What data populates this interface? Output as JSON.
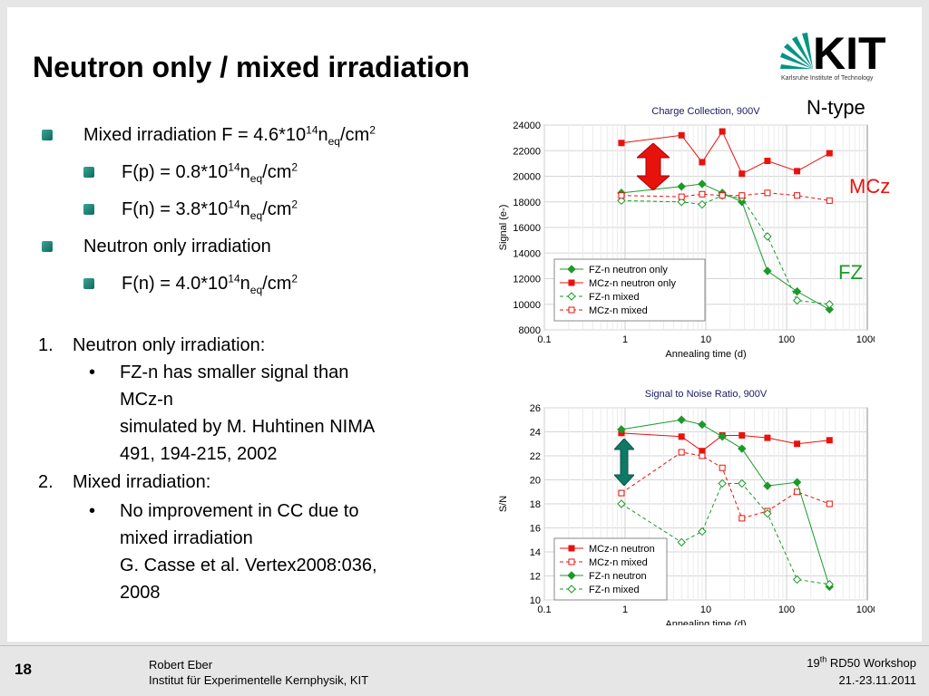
{
  "title": "Neutron only / mixed irradiation",
  "logo": {
    "text": "KIT",
    "subtitle": "Karlsruhe Institute of Technology"
  },
  "bullets": {
    "b1_main": "Mixed irradiation F = 4.6*10",
    "b1_sup": "14",
    "b1_n": "n",
    "b1_sub": "eq",
    "b1_unit": "/cm",
    "b1_unit_sup": "2",
    "b2_main": "F(p) = 0.8*10",
    "b2_sup": "14",
    "b2_n": "n",
    "b2_sub": "eq",
    "b2_unit": "/cm",
    "b2_unit_sup": "2",
    "b3_main": "F(n) = 3.8*10",
    "b3_sup": "14",
    "b3_n": "n",
    "b3_sub": "eq",
    "b3_unit": "/cm",
    "b3_unit_sup": "2",
    "b4_main": "Neutron only irradiation",
    "b5_main": "F(n) = 4.0*10",
    "b5_sup": "14",
    "b5_n": "n",
    "b5_sub": "eq",
    "b5_unit": "/cm",
    "b5_unit_sup": "2"
  },
  "numbered": {
    "n1": "1.",
    "n1_text": "Neutron only irradiation:",
    "n1_bullet": "•",
    "n1_sub1": "FZ-n has smaller signal than",
    "n1_sub2": "MCz-n",
    "n1_sub3": "simulated by M. Huhtinen NIMA",
    "n1_sub4": "491, 194-215, 2002",
    "n2": "2.",
    "n2_text": "Mixed irradiation:",
    "n2_bullet": "•",
    "n2_sub1": "No improvement in CC due to",
    "n2_sub2": "mixed irradiation",
    "n2_sub3": "G. Casse et al. Vertex2008:036,",
    "n2_sub4": "2008"
  },
  "labels": {
    "ntype": "N-type",
    "mcz": "MCz",
    "fz": "FZ"
  },
  "colors": {
    "red": "#e8120c",
    "green": "#1b9a2a",
    "teal": "#0e7a66"
  },
  "footer": {
    "page": "18",
    "author": "Robert Eber",
    "institute": "Institut für Experimentelle Kernphysik, KIT",
    "workshop_pre": "19",
    "workshop_sup": "th",
    "workshop_post": " RD50 Workshop",
    "date": "21.-23.11.2011"
  },
  "chart_data": [
    {
      "type": "line",
      "title": "Charge Collection, 900V",
      "xlabel": "Annealing time (d)",
      "ylabel": "Signal (e-)",
      "xscale": "log",
      "xlim": [
        0.1,
        1000
      ],
      "ylim": [
        8000,
        24000
      ],
      "yticks": [
        8000,
        10000,
        12000,
        14000,
        16000,
        18000,
        20000,
        22000,
        24000
      ],
      "xticks": [
        0.1,
        1,
        10,
        100,
        1000
      ],
      "xticklabels": [
        "0.1",
        "1",
        "10",
        "100",
        "1000"
      ],
      "grid": true,
      "legend": "bottom-left",
      "series": [
        {
          "name": "FZ-n neutron only",
          "color": "#1b9a2a",
          "marker": "filled-diamond",
          "dashed": false,
          "x": [
            0.9,
            5,
            9,
            16,
            28,
            58,
            135,
            340
          ],
          "y": [
            18700,
            19200,
            19400,
            18700,
            18000,
            12600,
            11000,
            9600
          ]
        },
        {
          "name": "MCz-n neutron only",
          "color": "#e8120c",
          "marker": "filled-square",
          "dashed": false,
          "x": [
            0.9,
            5,
            9,
            16,
            28,
            58,
            135,
            340
          ],
          "y": [
            22600,
            23200,
            21100,
            23500,
            20200,
            21200,
            20400,
            21800
          ]
        },
        {
          "name": "FZ-n mixed",
          "color": "#1b9a2a",
          "marker": "open-diamond",
          "dashed": true,
          "x": [
            0.9,
            5,
            9,
            16,
            28,
            58,
            135,
            340
          ],
          "y": [
            18100,
            18000,
            17800,
            18500,
            18300,
            15300,
            10300,
            10000
          ]
        },
        {
          "name": "MCz-n mixed",
          "color": "#e8120c",
          "marker": "open-square",
          "dashed": true,
          "x": [
            0.9,
            5,
            9,
            16,
            28,
            58,
            135,
            340
          ],
          "y": [
            18500,
            18400,
            18600,
            18500,
            18500,
            18700,
            18500,
            18100
          ]
        }
      ]
    },
    {
      "type": "line",
      "title": "Signal to Noise Ratio, 900V",
      "xlabel": "Annealing time (d)",
      "ylabel": "S/N",
      "xscale": "log",
      "xlim": [
        0.1,
        1000
      ],
      "ylim": [
        10,
        26
      ],
      "yticks": [
        10,
        12,
        14,
        16,
        18,
        20,
        22,
        24,
        26
      ],
      "xticks": [
        0.1,
        1,
        10,
        100,
        1000
      ],
      "xticklabels": [
        "0.1",
        "1",
        "10",
        "100",
        "1000"
      ],
      "grid": true,
      "legend": "bottom-left",
      "series": [
        {
          "name": "MCz-n neutron",
          "color": "#e8120c",
          "marker": "filled-square",
          "dashed": false,
          "x": [
            0.9,
            5,
            9,
            16,
            28,
            58,
            135,
            340
          ],
          "y": [
            23.9,
            23.6,
            22.4,
            23.7,
            23.7,
            23.5,
            23.0,
            23.3
          ]
        },
        {
          "name": "MCz-n mixed",
          "color": "#e8120c",
          "marker": "open-square",
          "dashed": true,
          "x": [
            0.9,
            5,
            9,
            16,
            28,
            58,
            135,
            340
          ],
          "y": [
            18.9,
            22.3,
            22.0,
            21.0,
            16.8,
            17.4,
            19.0,
            18.0
          ]
        },
        {
          "name": "FZ-n neutron",
          "color": "#1b9a2a",
          "marker": "filled-diamond",
          "dashed": false,
          "x": [
            0.9,
            5,
            9,
            16,
            28,
            58,
            135,
            340
          ],
          "y": [
            24.2,
            25.0,
            24.6,
            23.6,
            22.6,
            19.5,
            19.8,
            11.1
          ]
        },
        {
          "name": "FZ-n mixed",
          "color": "#1b9a2a",
          "marker": "open-diamond",
          "dashed": true,
          "x": [
            0.9,
            5,
            9,
            16,
            28,
            58,
            135,
            340
          ],
          "y": [
            18.0,
            14.8,
            15.7,
            19.7,
            19.7,
            17.2,
            11.7,
            11.3
          ]
        }
      ]
    }
  ]
}
